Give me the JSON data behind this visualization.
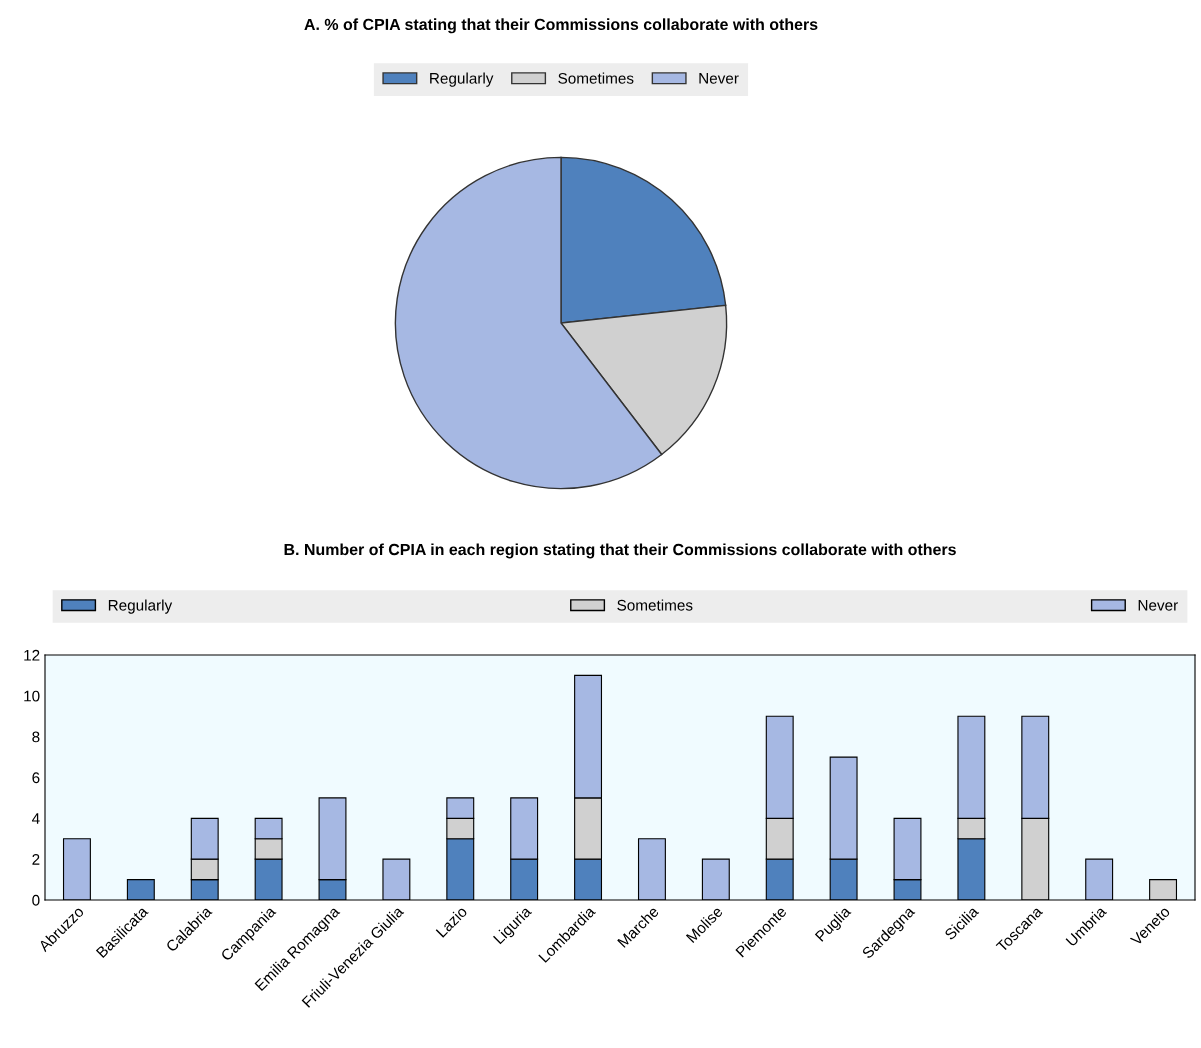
{
  "chart_data": [
    {
      "type": "pie",
      "title": "A. % of CPIA stating that their Commissions collaborate with others",
      "categories": [
        "Regularly",
        "Sometimes",
        "Never"
      ],
      "values": [
        23.3,
        16.3,
        60.4
      ],
      "colors": [
        "#4f81bd",
        "#d0d0d0",
        "#a6b8e3"
      ],
      "legend": "top"
    },
    {
      "type": "bar",
      "title": "B. Number of CPIA in each region stating that their Commissions collaborate with others",
      "stacked": true,
      "legend": "top",
      "categories": [
        "Abruzzo",
        "Basilicata",
        "Calabria",
        "Campania",
        "Emilia Romagna",
        "Friuli-Venezia Giulia",
        "Lazio",
        "Liguria",
        "Lombardia",
        "Marche",
        "Molise",
        "Piemonte",
        "Puglia",
        "Sardegna",
        "Sicilia",
        "Toscana",
        "Umbria",
        "Veneto"
      ],
      "series": [
        {
          "name": "Regularly",
          "color": "#4f81bd",
          "values": [
            0,
            1,
            1,
            2,
            1,
            0,
            3,
            2,
            2,
            0,
            0,
            2,
            2,
            1,
            3,
            0,
            0,
            0
          ]
        },
        {
          "name": "Sometimes",
          "color": "#d0d0d0",
          "values": [
            0,
            0,
            1,
            1,
            0,
            0,
            1,
            0,
            3,
            0,
            0,
            2,
            0,
            0,
            1,
            4,
            0,
            1
          ]
        },
        {
          "name": "Never",
          "color": "#a6b8e3",
          "values": [
            3,
            0,
            2,
            1,
            4,
            2,
            1,
            3,
            6,
            3,
            2,
            5,
            5,
            3,
            5,
            5,
            2,
            0
          ]
        }
      ],
      "ylim": [
        0,
        12
      ],
      "yticks": [
        0,
        2,
        4,
        6,
        8,
        10,
        12
      ],
      "grid": false
    }
  ]
}
